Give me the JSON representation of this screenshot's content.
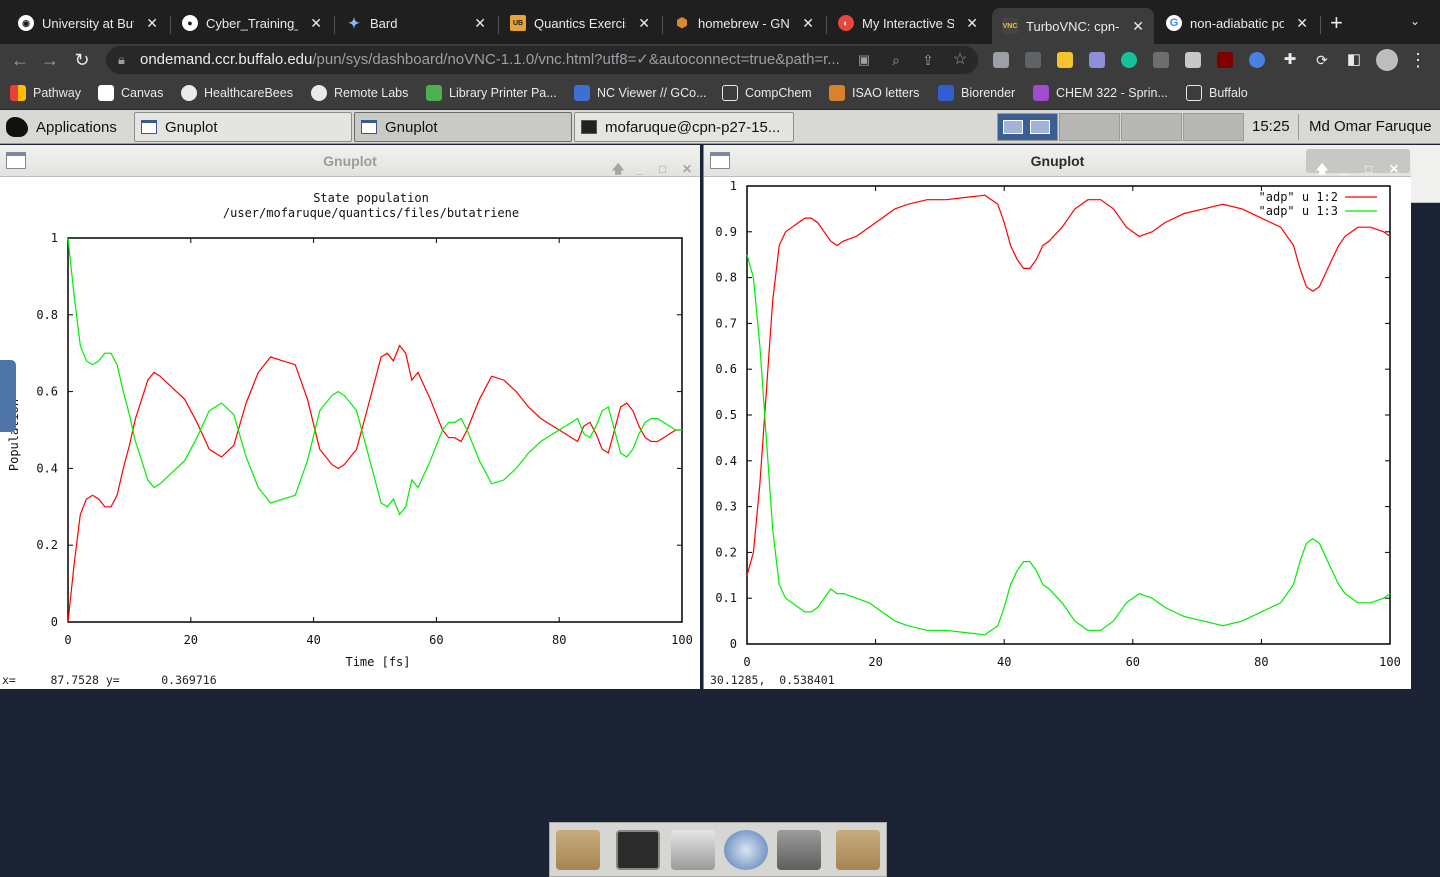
{
  "browser": {
    "tabs": [
      {
        "title": "University at Buffalo",
        "favicon_color": "#ffffff"
      },
      {
        "title": "Cyber_Training_W",
        "favicon_color": "#ffffff"
      },
      {
        "title": "Bard",
        "favicon_color": "#8ab4f8"
      },
      {
        "title": "Quantics Exercise",
        "favicon_color": "#e8a23a"
      },
      {
        "title": "homebrew - GNU",
        "favicon_color": "#d7893a"
      },
      {
        "title": "My Interactive Se",
        "favicon_color": "#e8453c"
      },
      {
        "title": "TurboVNC: cpn-p",
        "favicon_color": "#3c3c3c"
      },
      {
        "title": "non-adiabatic po",
        "favicon_color": "#ffffff"
      }
    ],
    "url_host": "ondemand.ccr.buffalo.edu",
    "url_rest": "/pun/sys/dashboard/noVNC-1.1.0/vnc.html?utf8=✓&autoconnect=true&path=r...",
    "bookmarks": [
      "Pathway",
      "Canvas",
      "HealthcareBees",
      "Remote Labs",
      "Library Printer Pa...",
      "NC Viewer // GCo...",
      "CompChem",
      "ISAO letters",
      "Biorender",
      "CHEM 322 - Sprin...",
      "Buffalo"
    ]
  },
  "taskbar": {
    "applications": "Applications",
    "window1": "Gnuplot",
    "window2": "Gnuplot",
    "window3": "mofaruque@cpn-p27-15...",
    "clock": "15:25",
    "user": "Md Omar Faruque"
  },
  "left_window": {
    "title": "Gnuplot",
    "status": "x=     87.7528 y=      0.369716"
  },
  "right_window": {
    "title": "Gnuplot",
    "status": "30.1285,  0.538401"
  },
  "chart_data": [
    {
      "type": "line",
      "title": "State population",
      "subtitle": "/user/mofaruque/quantics/files/butatriene",
      "xlabel": "Time [fs]",
      "ylabel": "Population",
      "xlim": [
        0,
        100
      ],
      "ylim": [
        0,
        1
      ],
      "xticks": [
        "0",
        "20",
        "40",
        "60",
        "80",
        "100"
      ],
      "yticks": [
        "0",
        "0.2",
        "0.4",
        "0.6",
        "0.8",
        "1"
      ],
      "grid": false,
      "series": [
        {
          "color": "#ff0000",
          "x": [
            0,
            1,
            2,
            3,
            4,
            5,
            6,
            7,
            8,
            9,
            10,
            11,
            12,
            13,
            14,
            15,
            17,
            19,
            21,
            23,
            25,
            27,
            29,
            31,
            33,
            35,
            37,
            39,
            41,
            43,
            44,
            45,
            47,
            49,
            51,
            52,
            53,
            54,
            55,
            56,
            57,
            59,
            61,
            62,
            63,
            64,
            65,
            67,
            69,
            71,
            73,
            75,
            77,
            79,
            81,
            83,
            84,
            85,
            86,
            87,
            88,
            89,
            90,
            91,
            92,
            93,
            94,
            95,
            96,
            97,
            98,
            99,
            100
          ],
          "y": [
            0,
            0.15,
            0.28,
            0.32,
            0.33,
            0.32,
            0.3,
            0.3,
            0.33,
            0.4,
            0.46,
            0.53,
            0.58,
            0.63,
            0.65,
            0.64,
            0.61,
            0.58,
            0.52,
            0.45,
            0.43,
            0.46,
            0.57,
            0.65,
            0.69,
            0.68,
            0.67,
            0.58,
            0.45,
            0.41,
            0.4,
            0.41,
            0.45,
            0.57,
            0.69,
            0.7,
            0.68,
            0.72,
            0.7,
            0.63,
            0.65,
            0.58,
            0.5,
            0.48,
            0.48,
            0.47,
            0.5,
            0.58,
            0.64,
            0.63,
            0.6,
            0.56,
            0.53,
            0.51,
            0.49,
            0.47,
            0.51,
            0.52,
            0.49,
            0.45,
            0.44,
            0.5,
            0.56,
            0.57,
            0.55,
            0.51,
            0.48,
            0.47,
            0.47,
            0.48,
            0.49,
            0.5,
            0.5
          ]
        },
        {
          "color": "#00ee00",
          "x": [
            0,
            1,
            2,
            3,
            4,
            5,
            6,
            7,
            8,
            9,
            10,
            11,
            12,
            13,
            14,
            15,
            17,
            19,
            21,
            23,
            25,
            27,
            29,
            31,
            33,
            35,
            37,
            39,
            41,
            43,
            44,
            45,
            47,
            49,
            51,
            52,
            53,
            54,
            55,
            56,
            57,
            59,
            61,
            62,
            63,
            64,
            65,
            67,
            69,
            71,
            73,
            75,
            77,
            79,
            81,
            83,
            84,
            85,
            86,
            87,
            88,
            89,
            90,
            91,
            92,
            93,
            94,
            95,
            96,
            97,
            98,
            99,
            100
          ],
          "y": [
            1,
            0.85,
            0.72,
            0.68,
            0.67,
            0.68,
            0.7,
            0.7,
            0.67,
            0.6,
            0.54,
            0.47,
            0.42,
            0.37,
            0.35,
            0.36,
            0.39,
            0.42,
            0.48,
            0.55,
            0.57,
            0.54,
            0.43,
            0.35,
            0.31,
            0.32,
            0.33,
            0.42,
            0.55,
            0.59,
            0.6,
            0.59,
            0.55,
            0.43,
            0.31,
            0.3,
            0.32,
            0.28,
            0.3,
            0.37,
            0.35,
            0.42,
            0.5,
            0.52,
            0.52,
            0.53,
            0.5,
            0.42,
            0.36,
            0.37,
            0.4,
            0.44,
            0.47,
            0.49,
            0.51,
            0.53,
            0.49,
            0.48,
            0.51,
            0.55,
            0.56,
            0.5,
            0.44,
            0.43,
            0.45,
            0.49,
            0.52,
            0.53,
            0.53,
            0.52,
            0.51,
            0.5,
            0.5
          ]
        }
      ]
    },
    {
      "type": "line",
      "xlim": [
        0,
        100
      ],
      "ylim": [
        0,
        1
      ],
      "xticks": [
        "0",
        "20",
        "40",
        "60",
        "80",
        "100"
      ],
      "yticks": [
        "0",
        "0.1",
        "0.2",
        "0.3",
        "0.4",
        "0.5",
        "0.6",
        "0.7",
        "0.8",
        "0.9",
        "1"
      ],
      "grid": false,
      "legend": "top-right",
      "series": [
        {
          "name": "\"adp\" u 1:2",
          "color": "#ff0000",
          "x": [
            0,
            1,
            2,
            3,
            4,
            5,
            6,
            7,
            8,
            9,
            10,
            11,
            12,
            13,
            14,
            15,
            17,
            19,
            21,
            23,
            25,
            28,
            31,
            34,
            37,
            39,
            40,
            41,
            42,
            43,
            44,
            45,
            46,
            47,
            49,
            51,
            53,
            55,
            57,
            59,
            61,
            63,
            65,
            68,
            71,
            74,
            77,
            80,
            83,
            85,
            86,
            87,
            88,
            89,
            90,
            91,
            92,
            93,
            95,
            97,
            99,
            100
          ],
          "y": [
            0.15,
            0.2,
            0.35,
            0.55,
            0.75,
            0.87,
            0.9,
            0.91,
            0.92,
            0.93,
            0.93,
            0.92,
            0.9,
            0.88,
            0.87,
            0.88,
            0.89,
            0.91,
            0.93,
            0.95,
            0.96,
            0.97,
            0.97,
            0.975,
            0.98,
            0.96,
            0.92,
            0.87,
            0.84,
            0.82,
            0.82,
            0.84,
            0.87,
            0.88,
            0.91,
            0.95,
            0.97,
            0.97,
            0.95,
            0.91,
            0.89,
            0.9,
            0.92,
            0.94,
            0.95,
            0.96,
            0.95,
            0.93,
            0.91,
            0.87,
            0.82,
            0.78,
            0.77,
            0.78,
            0.81,
            0.84,
            0.87,
            0.89,
            0.91,
            0.91,
            0.9,
            0.89
          ]
        },
        {
          "name": "\"adp\" u 1:3",
          "color": "#00ee00",
          "x": [
            0,
            1,
            2,
            3,
            4,
            5,
            6,
            7,
            8,
            9,
            10,
            11,
            12,
            13,
            14,
            15,
            17,
            19,
            21,
            23,
            25,
            28,
            31,
            34,
            37,
            39,
            40,
            41,
            42,
            43,
            44,
            45,
            46,
            47,
            49,
            51,
            53,
            55,
            57,
            59,
            61,
            63,
            65,
            68,
            71,
            74,
            77,
            80,
            83,
            85,
            86,
            87,
            88,
            89,
            90,
            91,
            92,
            93,
            95,
            97,
            99,
            100
          ],
          "y": [
            0.85,
            0.8,
            0.65,
            0.45,
            0.25,
            0.13,
            0.1,
            0.09,
            0.08,
            0.07,
            0.07,
            0.08,
            0.1,
            0.12,
            0.11,
            0.11,
            0.1,
            0.09,
            0.07,
            0.05,
            0.04,
            0.03,
            0.03,
            0.025,
            0.02,
            0.04,
            0.08,
            0.13,
            0.16,
            0.18,
            0.18,
            0.16,
            0.13,
            0.12,
            0.09,
            0.05,
            0.03,
            0.03,
            0.05,
            0.09,
            0.11,
            0.1,
            0.08,
            0.06,
            0.05,
            0.04,
            0.05,
            0.07,
            0.09,
            0.13,
            0.18,
            0.22,
            0.23,
            0.22,
            0.19,
            0.16,
            0.13,
            0.11,
            0.09,
            0.09,
            0.1,
            0.11
          ]
        }
      ]
    }
  ]
}
